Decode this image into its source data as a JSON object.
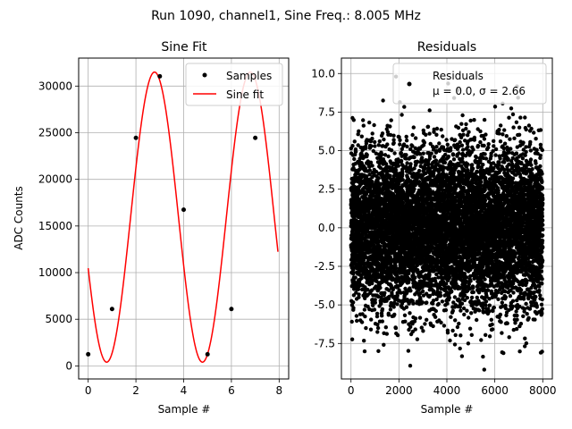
{
  "figure_title": "Run 1090, channel1, Sine Freq.: 8.005 MHz",
  "chart_data": [
    {
      "type": "line",
      "title": "Sine Fit",
      "xlabel": "Sample #",
      "ylabel": "ADC Counts",
      "xlim": [
        -0.4,
        8.4
      ],
      "ylim": [
        -1400,
        33000
      ],
      "xticks": [
        0,
        2,
        4,
        6,
        8
      ],
      "yticks": [
        0,
        5000,
        10000,
        15000,
        20000,
        25000,
        30000
      ],
      "grid": true,
      "legend_position": "top-right",
      "series": [
        {
          "name": "Samples",
          "style": "points",
          "color": "#000000",
          "x": [
            0,
            1,
            2,
            3,
            4,
            5,
            6,
            7
          ],
          "y": [
            1250,
            6100,
            24450,
            31050,
            16750,
            1250,
            6100,
            24450
          ]
        },
        {
          "name": "Sine fit",
          "style": "line",
          "color": "#ff0000",
          "fit": {
            "amplitude": 15550,
            "offset": 15950,
            "frequency": 0.2492,
            "peak_x": 2.78,
            "x_range": [
              0,
              7.95
            ]
          }
        }
      ]
    },
    {
      "type": "scatter",
      "title": "Residuals",
      "xlabel": "Sample #",
      "xlim": [
        -400,
        8400
      ],
      "ylim": [
        -9.8,
        11.0
      ],
      "xticks": [
        0,
        2000,
        4000,
        6000,
        8000
      ],
      "yticks": [
        -7.5,
        -5.0,
        -2.5,
        0.0,
        2.5,
        5.0,
        7.5,
        10.0
      ],
      "grid": true,
      "legend_position": "top-right",
      "series": [
        {
          "name": "Residuals",
          "color": "#000000",
          "x_range": [
            0,
            8000
          ],
          "count": 8000,
          "mean": 0.0,
          "sigma": 2.66
        }
      ],
      "legend_text": [
        "Residuals",
        "μ = 0.0, σ = 2.66"
      ]
    }
  ]
}
